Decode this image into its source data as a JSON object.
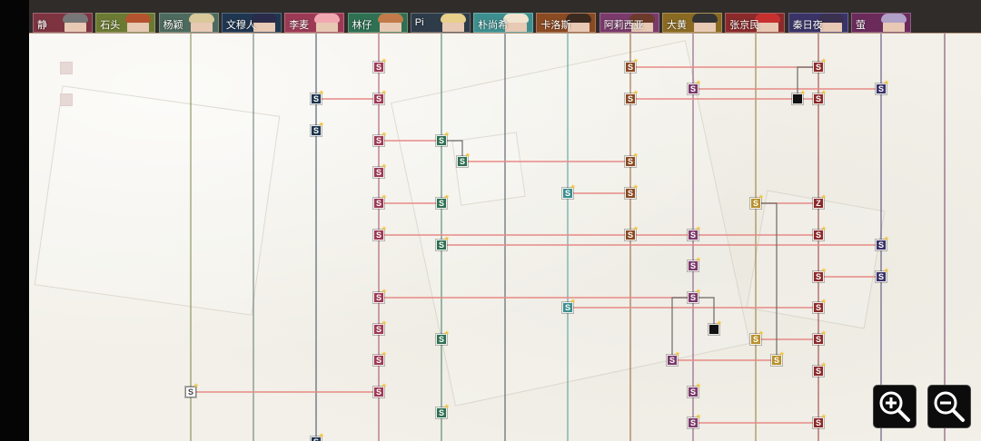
{
  "header": {
    "tabs": [
      {
        "label": "静",
        "color": "#7d3340",
        "hair": "#777777"
      },
      {
        "label": "石头",
        "color": "#6b7a33",
        "hair": "#b3542f"
      },
      {
        "label": "杨颖",
        "color": "#4d6a5e",
        "hair": "#d9c89a"
      },
      {
        "label": "文穆人",
        "color": "#1f3650",
        "hair": "#2a2a4a"
      },
      {
        "label": "李麦",
        "color": "#9c3a55",
        "hair": "#f2a8b0"
      },
      {
        "label": "林仔",
        "color": "#2f6f52",
        "hair": "#c27a4a"
      },
      {
        "label": "Pi",
        "color": "#2e3b48",
        "hair": "#e8d08a"
      },
      {
        "label": "朴尚希",
        "color": "#3d8f8f",
        "hair": "#f0e4d0"
      },
      {
        "label": "卡洛斯",
        "color": "#8a4a22",
        "hair": "#3a2a20"
      },
      {
        "label": "阿莉西亚",
        "color": "#7a3a6a",
        "hair": "#6b3a2a"
      },
      {
        "label": "大黄",
        "color": "#8a6a22",
        "hair": "#333333"
      },
      {
        "label": "张京民",
        "color": "#8a2a2a",
        "hair": "#c83030"
      },
      {
        "label": "秦日夜",
        "color": "#3a3368",
        "hair": "#3a3050"
      },
      {
        "label": "萤",
        "color": "#6a2a5a",
        "hair": "#b0a0c8"
      }
    ]
  },
  "node_symbols": {
    "standard": "S",
    "zeta": "Z"
  },
  "zoom_in_icon": "magnifier-plus-icon",
  "zoom_out_icon": "magnifier-minus-icon"
}
